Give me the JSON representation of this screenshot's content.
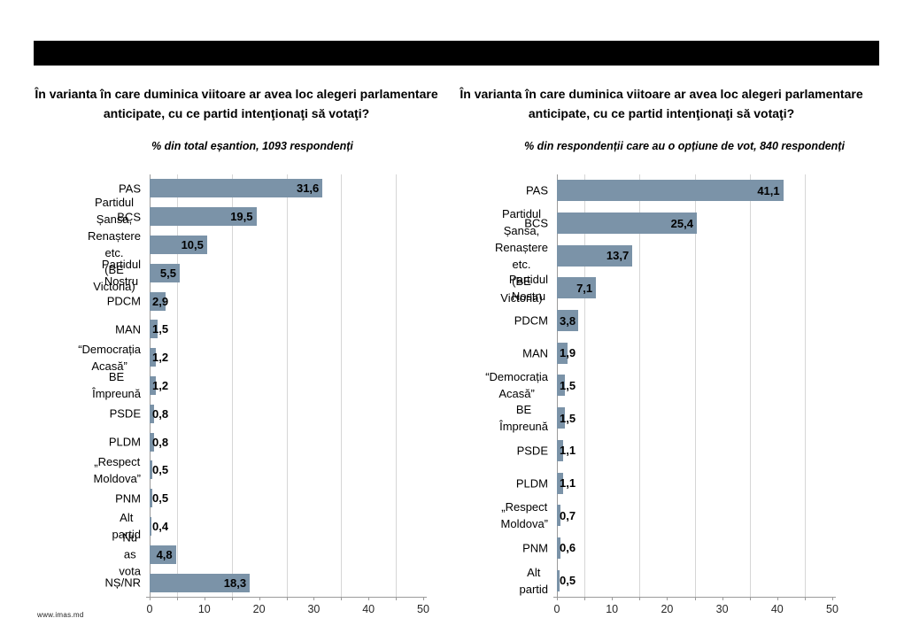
{
  "header_bar": {
    "color": "#000000"
  },
  "footer": {
    "website_label": "www.imas.md"
  },
  "chart_data": [
    {
      "type": "bar",
      "orientation": "horizontal",
      "title": "În varianta în care duminica viitoare ar avea loc alegeri parlamentare anticipate, cu ce partid intenţionaţi să votaţi?",
      "subtitle": "% din total eșantion, 1093 respondenți",
      "categories": [
        "PAS",
        "BCS",
        "Partidul Șansa,\nRenaștere etc.\n(BE Victoria)",
        "Partidul Nostru",
        "PDCM",
        "MAN",
        "“Democrația Acasă”",
        "BE Împreună",
        "PSDE",
        "PLDM",
        "„Respect Moldova”",
        "PNM",
        "Alt partid",
        "Nu as vota",
        "NȘ/NR"
      ],
      "values": [
        31.6,
        19.5,
        10.5,
        5.5,
        2.9,
        1.5,
        1.2,
        1.2,
        0.8,
        0.8,
        0.5,
        0.5,
        0.4,
        4.8,
        18.3
      ],
      "value_labels": [
        "31,6",
        "19,5",
        "10,5",
        "5,5",
        "2,9",
        "1,5",
        "1,2",
        "1,2",
        "0,8",
        "0,8",
        "0,5",
        "0,5",
        "0,4",
        "4,8",
        "18,3"
      ],
      "xlabel": "",
      "ylabel": "",
      "xlim": [
        0,
        50
      ],
      "x_ticks": [
        0,
        10,
        20,
        30,
        40,
        50
      ],
      "minor_tick_interval": 5,
      "gridlines": [
        5,
        15,
        25,
        35,
        45
      ],
      "grid": "on",
      "legend": "none",
      "bar_color": "#7b93a8"
    },
    {
      "type": "bar",
      "orientation": "horizontal",
      "title": "În varianta în care duminica viitoare ar avea loc alegeri parlamentare anticipate, cu ce partid intenţionaţi să votaţi?",
      "subtitle": "% din respondenții care au o opțiune de vot, 840 respondenți",
      "categories": [
        "PAS",
        "BCS",
        "Partidul Șansa,\nRenaștere etc.\n(BE Victoria)",
        "Partidul Nostru",
        "PDCM",
        "MAN",
        "“Democrația Acasă”",
        "BE Împreună",
        "PSDE",
        "PLDM",
        "„Respect Moldova”",
        "PNM",
        "Alt partid"
      ],
      "values": [
        41.1,
        25.4,
        13.7,
        7.1,
        3.8,
        1.9,
        1.5,
        1.5,
        1.1,
        1.1,
        0.7,
        0.6,
        0.5
      ],
      "value_labels": [
        "41,1",
        "25,4",
        "13,7",
        "7,1",
        "3,8",
        "1,9",
        "1,5",
        "1,5",
        "1,1",
        "1,1",
        "0,7",
        "0,6",
        "0,5"
      ],
      "xlabel": "",
      "ylabel": "",
      "xlim": [
        0,
        50
      ],
      "x_ticks": [
        0,
        10,
        20,
        30,
        40,
        50
      ],
      "minor_tick_interval": 5,
      "gridlines": [
        5,
        15,
        25,
        35,
        45
      ],
      "grid": "on",
      "legend": "none",
      "bar_color": "#7b93a8"
    }
  ]
}
